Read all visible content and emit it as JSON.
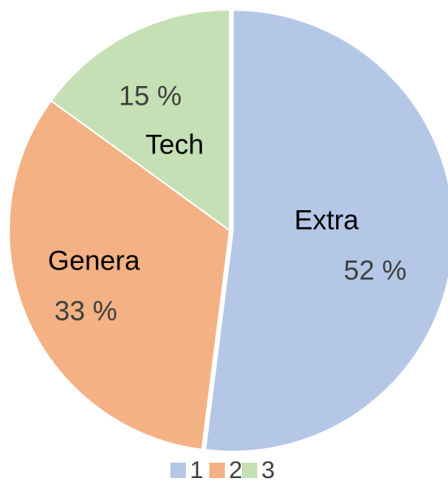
{
  "chart_data": {
    "type": "pie",
    "categories": [
      "Extra",
      "Genera",
      "Tech"
    ],
    "values": [
      52,
      33,
      15
    ],
    "value_labels": [
      "52 %",
      "33 %",
      "15 %"
    ],
    "colors": [
      "#b4c7e7",
      "#f4b183",
      "#c5e0b4"
    ],
    "legend_names": [
      "1",
      "2",
      "3"
    ],
    "legend": "bottom"
  }
}
